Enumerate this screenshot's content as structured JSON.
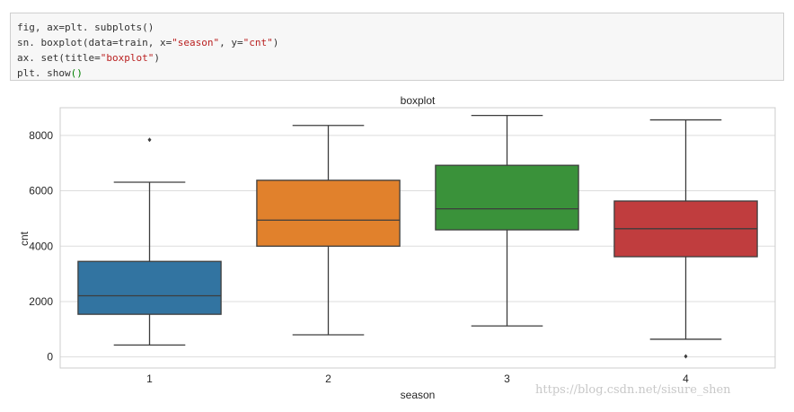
{
  "code_cell": {
    "lines": [
      [
        {
          "t": "fig, ax=plt. subplots()",
          "c": ""
        }
      ],
      [
        {
          "t": "sn. boxplot(data=train, x=",
          "c": ""
        },
        {
          "t": "\"season\"",
          "c": "str"
        },
        {
          "t": ", y=",
          "c": ""
        },
        {
          "t": "\"cnt\"",
          "c": "str"
        },
        {
          "t": ")",
          "c": ""
        }
      ],
      [
        {
          "t": "ax. set(title=",
          "c": ""
        },
        {
          "t": "\"boxplot\"",
          "c": "str"
        },
        {
          "t": ")",
          "c": ""
        }
      ],
      [
        {
          "t": "plt. show",
          "c": ""
        },
        {
          "t": "()",
          "c": "par"
        }
      ]
    ]
  },
  "chart_data": {
    "type": "boxplot",
    "title": "boxplot",
    "xlabel": "season",
    "ylabel": "cnt",
    "categories": [
      "1",
      "2",
      "3",
      "4"
    ],
    "ylim": [
      -400,
      9000
    ],
    "yticks": [
      0,
      2000,
      4000,
      6000,
      8000
    ],
    "grid": true,
    "colors": [
      "#3274a1",
      "#e1812c",
      "#3a923a",
      "#c03d3e"
    ],
    "boxes": [
      {
        "category": "1",
        "whisker_low": 430,
        "q1": 1540,
        "median": 2210,
        "q3": 3450,
        "whisker_high": 6310,
        "outliers": [
          7840
        ]
      },
      {
        "category": "2",
        "whisker_low": 800,
        "q1": 4000,
        "median": 4940,
        "q3": 6380,
        "whisker_high": 8360,
        "outliers": []
      },
      {
        "category": "3",
        "whisker_low": 1120,
        "q1": 4590,
        "median": 5350,
        "q3": 6920,
        "whisker_high": 8720,
        "outliers": []
      },
      {
        "category": "4",
        "whisker_low": 640,
        "q1": 3620,
        "median": 4630,
        "q3": 5630,
        "whisker_high": 8560,
        "outliers": [
          20
        ]
      }
    ]
  },
  "watermark": "https://blog.csdn.net/sisure_shen"
}
